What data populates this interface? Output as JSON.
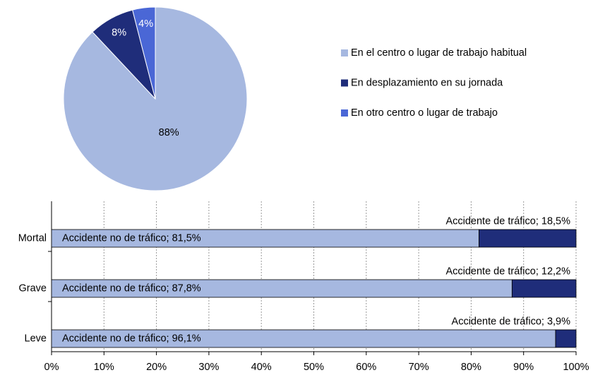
{
  "chart_data": [
    {
      "type": "pie",
      "categories": [
        "En el centro o lugar de trabajo habitual",
        "En desplazamiento en su jornada",
        "En otro centro o lugar de trabajo"
      ],
      "values": [
        88,
        8,
        4
      ],
      "value_labels": [
        "88%",
        "8%",
        "4%"
      ],
      "colors": [
        "#a6b8e0",
        "#1f2d7a",
        "#4a67d6"
      ],
      "label_colors": [
        "#000000",
        "#ffffff",
        "#ffffff"
      ],
      "legend": "right"
    },
    {
      "type": "stacked_barh",
      "categories": [
        "Mortal",
        "Grave",
        "Leve"
      ],
      "series": [
        {
          "color": "#a6b8e0",
          "values": [
            81.5,
            87.8,
            96.1
          ],
          "value_labels": [
            "Accidente no de tráfico; 81,5%",
            "Accidente no de tráfico; 87,8%",
            "Accidente no de tráfico; 96,1%"
          ]
        },
        {
          "color": "#1f2d7a",
          "values": [
            18.5,
            12.2,
            3.9
          ],
          "value_labels": [
            "Accidente de tráfico; 18,5%",
            "Accidente de tráfico; 12,2%",
            "Accidente de tráfico; 3,9%"
          ]
        }
      ],
      "xlim": [
        0,
        100
      ],
      "xticks": [
        {
          "value": 0,
          "label": "0%"
        },
        {
          "value": 10,
          "label": "10%"
        },
        {
          "value": 20,
          "label": "20%"
        },
        {
          "value": 30,
          "label": "30%"
        },
        {
          "value": 40,
          "label": "40%"
        },
        {
          "value": 50,
          "label": "50%"
        },
        {
          "value": 60,
          "label": "60%"
        },
        {
          "value": 70,
          "label": "70%"
        },
        {
          "value": 80,
          "label": "80%"
        },
        {
          "value": 90,
          "label": "90%"
        },
        {
          "value": 100,
          "label": "100%"
        }
      ],
      "grid": true
    }
  ]
}
